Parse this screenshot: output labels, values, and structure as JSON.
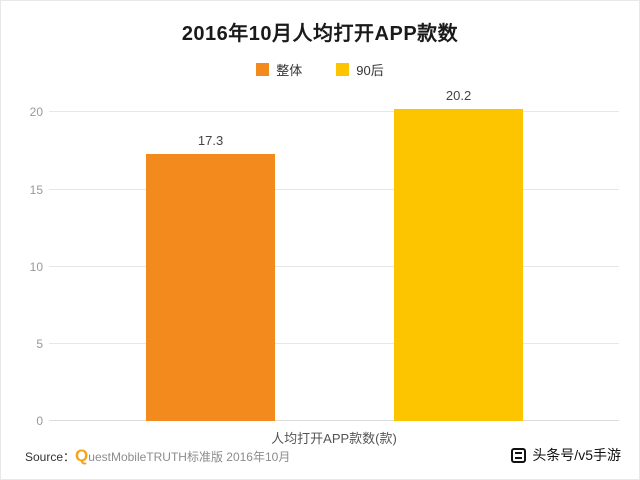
{
  "title": "2016年10月人均打开APP款数",
  "legend": [
    {
      "label": "整体",
      "color": "#f28a1e"
    },
    {
      "label": "90后",
      "color": "#fcc500"
    }
  ],
  "chart_data": {
    "type": "bar",
    "title": "2016年10月人均打开APP款数",
    "categories": [
      "整体",
      "90后"
    ],
    "values": [
      17.3,
      20.2
    ],
    "colors": [
      "#f28a1e",
      "#fcc500"
    ],
    "xlabel": "人均打开APP款数(款)",
    "ylabel": "",
    "ylim": [
      0,
      21
    ],
    "yticks": [
      0,
      5,
      10,
      15,
      20
    ],
    "grid": true,
    "legend_position": "top"
  },
  "xaxis_label": "人均打开APP款数(款)",
  "source": {
    "prefix": "Source：",
    "logo_q": "Q",
    "logo_rest": "uestMobile",
    "suffix": " TRUTH标准版 2016年10月"
  },
  "watermark": {
    "text": "头条号/v5手游"
  }
}
